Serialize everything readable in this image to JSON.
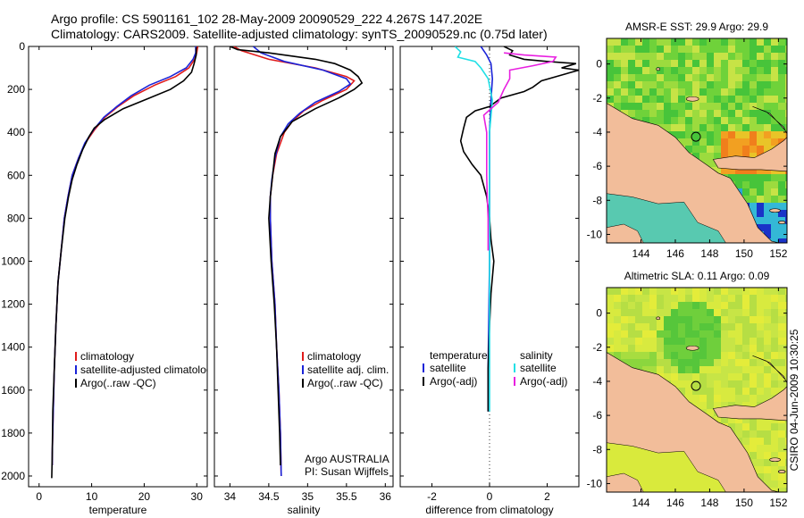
{
  "header": {
    "title_line1": "Argo profile: CS 5901161_102 28-May-2009 20090529_222 4.267S 147.202E",
    "title_line2": "Climatology: CARS2009. Satellite-adjusted climatology: synTS_20090529.nc (0.75d later)"
  },
  "side_label": "CSIRO 04-Jun-2009 10:30:25",
  "colors": {
    "red": "#e01b1b",
    "blue": "#1a23d8",
    "black": "#000000",
    "cyan": "#22e0e6",
    "magenta": "#e81fe0",
    "land": "#f2bd9a"
  },
  "chart_data": [
    {
      "id": "temperature",
      "type": "line",
      "xlabel": "temperature",
      "ylabel": "",
      "xlim": [
        -2,
        32
      ],
      "ylim": [
        2050,
        0
      ],
      "xticks": [
        0,
        10,
        20,
        30
      ],
      "yticks": [
        0,
        200,
        400,
        600,
        800,
        1000,
        1200,
        1400,
        1600,
        1800,
        2000
      ],
      "legend": [
        "climatology",
        "satellite-adjusted climatology",
        "Argo(..raw -QC)"
      ],
      "series": [
        {
          "name": "climatology",
          "color": "red",
          "points": [
            [
              30.2,
              0
            ],
            [
              30,
              30
            ],
            [
              29.6,
              60
            ],
            [
              28.5,
              100
            ],
            [
              26,
              140
            ],
            [
              22,
              180
            ],
            [
              18,
              230
            ],
            [
              15,
              280
            ],
            [
              12.5,
              330
            ],
            [
              10.5,
              390
            ],
            [
              8.8,
              450
            ],
            [
              7.5,
              520
            ],
            [
              6.3,
              600
            ],
            [
              5.5,
              700
            ],
            [
              4.8,
              800
            ],
            [
              4.2,
              950
            ],
            [
              3.6,
              1100
            ],
            [
              3.2,
              1300
            ],
            [
              2.9,
              1500
            ],
            [
              2.7,
              1700
            ],
            [
              2.5,
              1900
            ],
            [
              2.5,
              1950
            ]
          ]
        },
        {
          "name": "satellite-adjusted climatology",
          "color": "blue",
          "points": [
            [
              29.8,
              0
            ],
            [
              29.8,
              30
            ],
            [
              29.3,
              60
            ],
            [
              28,
              100
            ],
            [
              25,
              140
            ],
            [
              21,
              180
            ],
            [
              17.5,
              230
            ],
            [
              14.8,
              280
            ],
            [
              12.3,
              330
            ],
            [
              10.3,
              390
            ],
            [
              8.7,
              450
            ],
            [
              7.5,
              520
            ],
            [
              6.3,
              600
            ],
            [
              5.5,
              700
            ],
            [
              4.8,
              800
            ],
            [
              4.2,
              950
            ],
            [
              3.6,
              1100
            ],
            [
              3.2,
              1300
            ],
            [
              2.9,
              1500
            ],
            [
              2.7,
              1700
            ],
            [
              2.5,
              1900
            ],
            [
              2.5,
              1950
            ]
          ]
        },
        {
          "name": "Argo(..raw -QC)",
          "color": "black",
          "points": [
            [
              29.9,
              5
            ],
            [
              29.9,
              40
            ],
            [
              29.5,
              80
            ],
            [
              29,
              120
            ],
            [
              27.5,
              160
            ],
            [
              25,
              200
            ],
            [
              21,
              240
            ],
            [
              16,
              290
            ],
            [
              12.5,
              340
            ],
            [
              10.5,
              380
            ],
            [
              9.5,
              420
            ],
            [
              8.3,
              480
            ],
            [
              7.2,
              550
            ],
            [
              6.3,
              620
            ],
            [
              5.6,
              700
            ],
            [
              4.9,
              800
            ],
            [
              4.2,
              950
            ],
            [
              3.6,
              1100
            ],
            [
              3.2,
              1300
            ],
            [
              2.9,
              1500
            ],
            [
              2.6,
              1700
            ],
            [
              2.5,
              1900
            ],
            [
              2.4,
              2010
            ]
          ]
        }
      ]
    },
    {
      "id": "salinity",
      "type": "line",
      "xlabel": "salinity",
      "ylabel": "",
      "xlim": [
        33.8,
        36.1
      ],
      "ylim": [
        2050,
        0
      ],
      "xticks": [
        34,
        34.5,
        35,
        35.5,
        36
      ],
      "yticks": [
        0,
        200,
        400,
        600,
        800,
        1000,
        1200,
        1400,
        1600,
        1800,
        2000
      ],
      "legend": [
        "climatology",
        "satellite adj. clim.",
        "Argo(..raw -QC)"
      ],
      "annotation_line1": "Argo AUSTRALIA",
      "annotation_line2": "PI: Susan Wijffels",
      "series": [
        {
          "name": "climatology",
          "color": "red",
          "points": [
            [
              34.05,
              0
            ],
            [
              34.15,
              20
            ],
            [
              34.5,
              60
            ],
            [
              35.1,
              100
            ],
            [
              35.5,
              140
            ],
            [
              35.6,
              160
            ],
            [
              35.5,
              200
            ],
            [
              35.2,
              250
            ],
            [
              34.95,
              300
            ],
            [
              34.8,
              350
            ],
            [
              34.7,
              400
            ],
            [
              34.6,
              500
            ],
            [
              34.55,
              600
            ],
            [
              34.52,
              700
            ],
            [
              34.52,
              800
            ],
            [
              34.54,
              1000
            ],
            [
              34.58,
              1200
            ],
            [
              34.6,
              1400
            ],
            [
              34.63,
              1600
            ],
            [
              34.65,
              1800
            ],
            [
              34.66,
              2000
            ]
          ]
        },
        {
          "name": "satellite adj. clim.",
          "color": "blue",
          "points": [
            [
              34.3,
              0
            ],
            [
              34.4,
              30
            ],
            [
              34.7,
              70
            ],
            [
              35.2,
              110
            ],
            [
              35.5,
              150
            ],
            [
              35.55,
              175
            ],
            [
              35.4,
              210
            ],
            [
              35.1,
              260
            ],
            [
              34.9,
              310
            ],
            [
              34.75,
              360
            ],
            [
              34.65,
              420
            ],
            [
              34.58,
              520
            ],
            [
              34.54,
              620
            ],
            [
              34.52,
              700
            ],
            [
              34.52,
              800
            ],
            [
              34.54,
              1000
            ],
            [
              34.58,
              1200
            ],
            [
              34.6,
              1400
            ],
            [
              34.63,
              1600
            ],
            [
              34.65,
              1800
            ],
            [
              34.66,
              2000
            ]
          ]
        },
        {
          "name": "Argo(..raw -QC)",
          "color": "black",
          "points": [
            [
              34.0,
              0
            ],
            [
              34.1,
              15
            ],
            [
              34.5,
              30
            ],
            [
              34.8,
              45
            ],
            [
              35.1,
              60
            ],
            [
              35.35,
              80
            ],
            [
              35.55,
              110
            ],
            [
              35.65,
              140
            ],
            [
              35.7,
              170
            ],
            [
              35.6,
              200
            ],
            [
              35.4,
              240
            ],
            [
              35.1,
              290
            ],
            [
              34.8,
              350
            ],
            [
              34.65,
              420
            ],
            [
              34.58,
              500
            ],
            [
              34.55,
              600
            ],
            [
              34.52,
              700
            ],
            [
              34.5,
              800
            ],
            [
              34.53,
              1000
            ],
            [
              34.57,
              1200
            ],
            [
              34.6,
              1400
            ],
            [
              34.62,
              1600
            ],
            [
              34.64,
              1800
            ],
            [
              34.65,
              1950
            ]
          ]
        }
      ]
    },
    {
      "id": "difference",
      "type": "line",
      "xlabel": "difference from climatology",
      "ylabel": "",
      "xlim": [
        -3.1,
        3.1
      ],
      "ylim": [
        2050,
        0
      ],
      "xticks": [
        -2,
        0,
        2
      ],
      "yticks": [
        0,
        200,
        400,
        600,
        800,
        1000,
        1200,
        1400,
        1600,
        1800,
        2000
      ],
      "legend_left_title": "temperature",
      "legend_right_title": "salinity",
      "legend_left": [
        "satellite",
        "Argo(-adj)"
      ],
      "legend_right": [
        "satellite",
        "Argo(-adj)"
      ],
      "series": [
        {
          "name": "temperature satellite",
          "color": "blue",
          "points": [
            [
              -0.3,
              0
            ],
            [
              -0.1,
              40
            ],
            [
              0.05,
              80
            ],
            [
              0.1,
              150
            ],
            [
              0.05,
              250
            ],
            [
              0,
              400
            ],
            [
              0,
              1000
            ],
            [
              -0.05,
              1500
            ],
            [
              -0.05,
              1700
            ]
          ]
        },
        {
          "name": "temperature Argo(-adj)",
          "color": "black",
          "points": [
            [
              0.5,
              0
            ],
            [
              0.8,
              20
            ],
            [
              0.7,
              40
            ],
            [
              1.2,
              60
            ],
            [
              2,
              70
            ],
            [
              3,
              80
            ],
            [
              2.5,
              100
            ],
            [
              3.1,
              110
            ],
            [
              1.8,
              160
            ],
            [
              1.5,
              190
            ],
            [
              1.2,
              210
            ],
            [
              0.4,
              240
            ],
            [
              0,
              280
            ],
            [
              -0.5,
              300
            ],
            [
              -0.8,
              330
            ],
            [
              -0.9,
              380
            ],
            [
              -1,
              440
            ],
            [
              -0.9,
              490
            ],
            [
              -0.6,
              550
            ],
            [
              -0.3,
              600
            ],
            [
              -0.1,
              700
            ],
            [
              0,
              800
            ],
            [
              0.05,
              900
            ],
            [
              0.15,
              1000
            ],
            [
              0.05,
              1150
            ],
            [
              0,
              1300
            ],
            [
              -0.05,
              1500
            ],
            [
              -0.05,
              1700
            ]
          ]
        },
        {
          "name": "salinity satellite",
          "color": "cyan",
          "points": [
            [
              -1.2,
              0
            ],
            [
              -1,
              25
            ],
            [
              -1.1,
              50
            ],
            [
              -0.5,
              70
            ],
            [
              -0.3,
              100
            ],
            [
              -0.05,
              150
            ],
            [
              0.1,
              250
            ],
            [
              0,
              400
            ],
            [
              0,
              1000
            ],
            [
              0,
              1200
            ],
            [
              0,
              1500
            ],
            [
              0,
              1700
            ]
          ]
        },
        {
          "name": "salinity Argo(-adj)",
          "color": "magenta",
          "points": [
            [
              0.5,
              30
            ],
            [
              1.2,
              40
            ],
            [
              2.3,
              50
            ],
            [
              2.2,
              70
            ],
            [
              1.5,
              90
            ],
            [
              0.7,
              110
            ],
            [
              0.7,
              150
            ],
            [
              0.5,
              200
            ],
            [
              0.3,
              260
            ],
            [
              -0.2,
              320
            ],
            [
              -0.1,
              400
            ],
            [
              -0.1,
              500
            ],
            [
              -0.1,
              600
            ],
            [
              -0.08,
              700
            ],
            [
              -0.05,
              800
            ],
            [
              -0.05,
              900
            ],
            [
              -0.05,
              950
            ]
          ]
        }
      ]
    },
    {
      "id": "sst_map",
      "type": "heatmap",
      "title": "AMSR-E SST: 29.9  Argo: 29.9",
      "xlim": [
        142,
        152.5
      ],
      "ylim": [
        -10.5,
        1.5
      ],
      "xticks": [
        144,
        146,
        148,
        150,
        152
      ],
      "yticks": [
        0,
        -2,
        -4,
        -6,
        -8,
        -10
      ],
      "marker": [
        147.2,
        -4.27
      ]
    },
    {
      "id": "sla_map",
      "type": "heatmap",
      "title": "Altimetric SLA: 0.11  Argo: 0.09",
      "xlim": [
        142,
        152.5
      ],
      "ylim": [
        -10.5,
        1.5
      ],
      "xticks": [
        144,
        146,
        148,
        150,
        152
      ],
      "yticks": [
        0,
        -2,
        -4,
        -6,
        -8,
        -10
      ],
      "marker": [
        147.2,
        -4.27
      ]
    }
  ]
}
